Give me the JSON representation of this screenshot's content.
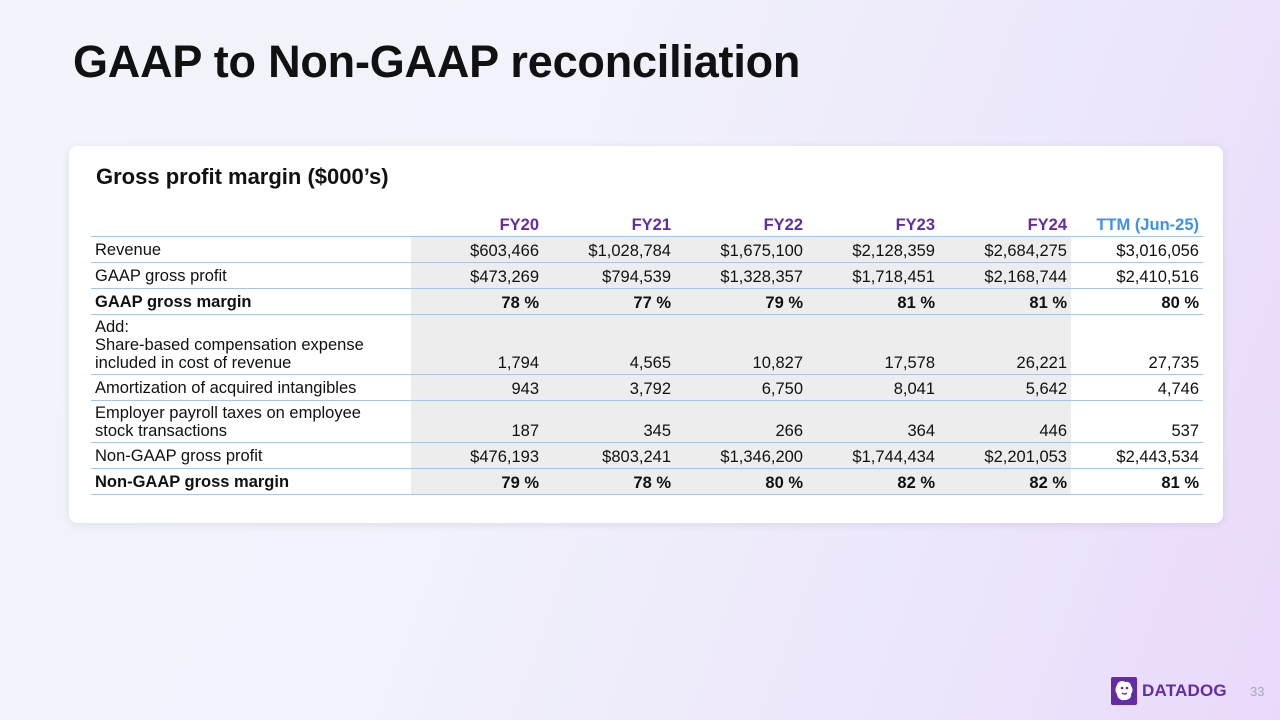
{
  "slide": {
    "title": "GAAP to Non-GAAP reconciliation",
    "page_number": "33"
  },
  "card": {
    "title": "Gross profit margin ($000’s)"
  },
  "table": {
    "columns": [
      "FY20",
      "FY21",
      "FY22",
      "FY23",
      "FY24",
      "TTM (Jun-25)"
    ],
    "rows": [
      {
        "label": [
          "Revenue"
        ],
        "values": [
          "$603,466",
          "$1,028,784",
          "$1,675,100",
          "$2,128,359",
          "$2,684,275",
          "$3,016,056"
        ]
      },
      {
        "label": [
          "GAAP gross profit"
        ],
        "values": [
          "$473,269",
          "$794,539",
          "$1,328,357",
          "$1,718,451",
          "$2,168,744",
          "$2,410,516"
        ]
      },
      {
        "label": [
          "GAAP gross margin"
        ],
        "values": [
          "78 %",
          "77 %",
          "79 %",
          "81 %",
          "81 %",
          "80 %"
        ]
      },
      {
        "label": [
          "Add:",
          "Share-based compensation expense",
          "included in cost of revenue"
        ],
        "values": [
          "1,794",
          "4,565",
          "10,827",
          "17,578",
          "26,221",
          "27,735"
        ]
      },
      {
        "label": [
          "Amortization of acquired intangibles"
        ],
        "values": [
          "943",
          "3,792",
          "6,750",
          "8,041",
          "5,642",
          "4,746"
        ]
      },
      {
        "label": [
          "Employer payroll taxes on employee",
          "stock transactions"
        ],
        "values": [
          "187",
          "345",
          "266",
          "364",
          "446",
          "537"
        ]
      },
      {
        "label": [
          "Non-GAAP gross profit"
        ],
        "values": [
          "$476,193",
          "$803,241",
          "$1,346,200",
          "$1,744,434",
          "$2,201,053",
          "$2,443,534"
        ]
      },
      {
        "label": [
          "Non-GAAP gross margin"
        ],
        "values": [
          "79 %",
          "78 %",
          "80 %",
          "82 %",
          "82 %",
          "81 %"
        ]
      }
    ]
  },
  "footer": {
    "logo_text": "DATADOG",
    "logo_icon": "datadog-dog-icon",
    "brand_color": "#632ca6",
    "ttm_header_color": "#3f92e8"
  }
}
